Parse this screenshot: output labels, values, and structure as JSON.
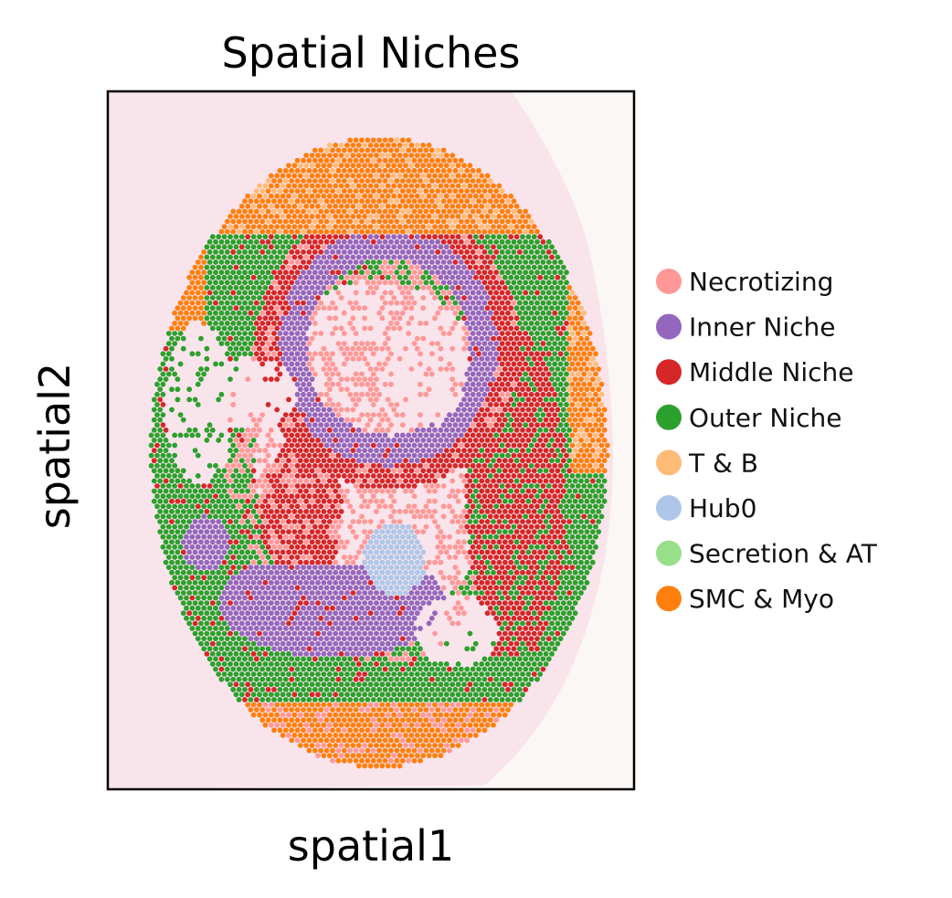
{
  "chart_data": {
    "type": "scatter",
    "title": "Spatial Niches",
    "xlabel": "spatial1",
    "ylabel": "spatial2",
    "ticks": "none",
    "grid": false,
    "legend_position": "right",
    "legend": [
      {
        "label": "Necrotizing",
        "color": "#ff9896"
      },
      {
        "label": "Inner Niche",
        "color": "#9467bd"
      },
      {
        "label": "Middle Niche",
        "color": "#d62728"
      },
      {
        "label": "Outer Niche",
        "color": "#2ca02c"
      },
      {
        "label": "T & B",
        "color": "#ffbb78"
      },
      {
        "label": "Hub0",
        "color": "#aec7e8"
      },
      {
        "label": "Secretion & AT",
        "color": "#98df8a"
      },
      {
        "label": "SMC & Myo",
        "color": "#ff7f0e"
      }
    ],
    "background": "tissue H&E image (pink)",
    "background_color": "#f6dde7",
    "regions": [
      {
        "niche": "SMC & Myo",
        "description": "outer band along top, left and bottom tissue edges"
      },
      {
        "niche": "Outer Niche",
        "description": "large ring around tissue, thick on right side"
      },
      {
        "niche": "Middle Niche",
        "description": "band between outer and inner niches"
      },
      {
        "niche": "Inner Niche",
        "description": "central ring structures"
      },
      {
        "niche": "Hub0",
        "description": "small central-lower patch"
      },
      {
        "niche": "Necrotizing",
        "description": "scattered spots near interior edges"
      }
    ]
  }
}
